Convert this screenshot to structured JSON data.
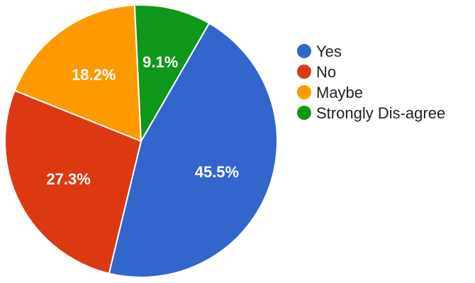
{
  "chart_data": {
    "type": "pie",
    "legend_position": "right",
    "slices": [
      {
        "label": "Yes",
        "value": 45.5,
        "value_label": "45.5%",
        "color": "#3366cc"
      },
      {
        "label": "No",
        "value": 27.3,
        "value_label": "27.3%",
        "color": "#dc3912"
      },
      {
        "label": "Maybe",
        "value": 18.2,
        "value_label": "18.2%",
        "color": "#ff9900"
      },
      {
        "label": "Strongly Dis-agree",
        "value": 9.1,
        "value_label": "9.1%",
        "color": "#109618"
      }
    ]
  }
}
